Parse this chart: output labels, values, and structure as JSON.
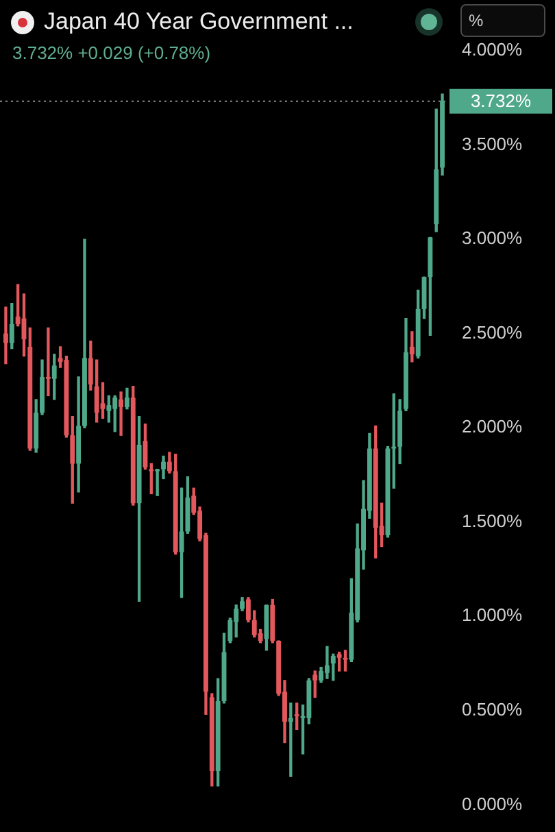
{
  "chart_data": {
    "type": "candlestick",
    "title": "Japan 40 Year Government ...",
    "subtitle": "3.732% +0.029 (+0.78%)",
    "annotations": [
      "%"
    ],
    "categories": [
      null,
      null,
      null,
      null,
      null,
      null,
      null,
      null,
      null,
      null,
      null,
      null,
      null,
      null,
      null,
      null,
      null,
      null,
      null,
      null,
      null,
      null,
      null,
      null,
      null,
      null,
      null,
      null,
      null,
      null,
      null,
      null,
      null,
      null,
      null,
      null,
      null,
      null,
      null,
      null,
      null,
      null,
      null,
      null,
      null,
      null,
      null,
      null,
      null,
      null,
      null,
      null,
      null,
      null,
      null,
      null,
      null,
      null,
      null,
      null,
      null,
      null,
      null,
      null,
      null,
      null,
      null,
      null,
      null,
      null,
      null,
      null,
      null
    ],
    "ohlc": [
      [
        2.5,
        2.64,
        2.34,
        2.45
      ],
      [
        2.45,
        2.66,
        2.42,
        2.55
      ],
      [
        2.59,
        2.76,
        2.54,
        2.55
      ],
      [
        2.58,
        2.71,
        2.38,
        2.47
      ],
      [
        2.43,
        2.53,
        1.88,
        1.89
      ],
      [
        1.89,
        2.15,
        1.87,
        2.08
      ],
      [
        2.08,
        2.36,
        2.07,
        2.27
      ],
      [
        2.27,
        2.53,
        2.17,
        2.26
      ],
      [
        2.26,
        2.39,
        2.15,
        2.33
      ],
      [
        2.37,
        2.43,
        2.32,
        2.35
      ],
      [
        2.36,
        2.38,
        1.95,
        1.96
      ],
      [
        1.96,
        2.06,
        1.6,
        1.81
      ],
      [
        1.81,
        2.27,
        1.66,
        2.01
      ],
      [
        2.01,
        3.0,
        2.0,
        2.37
      ],
      [
        2.37,
        2.46,
        2.2,
        2.23
      ],
      [
        2.22,
        2.36,
        2.03,
        2.08
      ],
      [
        2.13,
        2.24,
        2.05,
        2.1
      ],
      [
        2.09,
        2.17,
        2.03,
        2.12
      ],
      [
        2.1,
        2.17,
        1.98,
        2.16
      ],
      [
        2.15,
        2.19,
        1.96,
        2.11
      ],
      [
        2.11,
        2.21,
        2.1,
        2.16
      ],
      [
        2.16,
        2.22,
        1.59,
        1.6
      ],
      [
        1.6,
        2.06,
        1.08,
        1.91
      ],
      [
        1.93,
        2.02,
        1.78,
        1.79
      ],
      [
        1.78,
        1.81,
        1.65,
        1.77
      ],
      [
        1.77,
        1.78,
        1.64,
        1.78
      ],
      [
        1.78,
        1.85,
        1.73,
        1.82
      ],
      [
        1.82,
        1.87,
        1.76,
        1.77
      ],
      [
        1.77,
        1.86,
        1.33,
        1.34
      ],
      [
        1.34,
        1.68,
        1.1,
        1.45
      ],
      [
        1.45,
        1.74,
        1.44,
        1.63
      ],
      [
        1.64,
        1.68,
        1.54,
        1.55
      ],
      [
        1.56,
        1.58,
        1.4,
        1.41
      ],
      [
        1.43,
        1.44,
        0.48,
        0.6
      ],
      [
        0.57,
        0.59,
        0.1,
        0.18
      ],
      [
        0.18,
        0.67,
        0.1,
        0.55
      ],
      [
        0.55,
        0.91,
        0.54,
        0.81
      ],
      [
        0.87,
        0.99,
        0.86,
        0.98
      ],
      [
        0.97,
        1.06,
        0.89,
        1.04
      ],
      [
        1.04,
        1.1,
        1.03,
        1.08
      ],
      [
        1.09,
        1.1,
        0.97,
        0.98
      ],
      [
        0.98,
        1.03,
        0.89,
        0.9
      ],
      [
        0.91,
        0.93,
        0.86,
        0.87
      ],
      [
        0.88,
        1.06,
        0.82,
        1.06
      ],
      [
        1.06,
        1.09,
        0.86,
        0.87
      ],
      [
        0.87,
        0.87,
        0.58,
        0.59
      ],
      [
        0.6,
        0.66,
        0.33,
        0.44
      ],
      [
        0.44,
        0.54,
        0.15,
        0.46
      ],
      [
        0.48,
        0.54,
        0.4,
        0.47
      ],
      [
        0.46,
        0.53,
        0.27,
        0.47
      ],
      [
        0.46,
        0.67,
        0.43,
        0.66
      ],
      [
        0.69,
        0.71,
        0.57,
        0.66
      ],
      [
        0.66,
        0.73,
        0.65,
        0.71
      ],
      [
        0.7,
        0.84,
        0.67,
        0.74
      ],
      [
        0.75,
        0.8,
        0.66,
        0.79
      ],
      [
        0.8,
        0.81,
        0.71,
        0.78
      ],
      [
        0.78,
        0.82,
        0.71,
        0.77
      ],
      [
        0.77,
        1.2,
        0.76,
        1.02
      ],
      [
        0.98,
        1.49,
        0.97,
        1.36
      ],
      [
        1.35,
        1.72,
        1.25,
        1.57
      ],
      [
        1.56,
        1.97,
        1.52,
        1.89
      ],
      [
        1.89,
        2.01,
        1.31,
        1.47
      ],
      [
        1.48,
        1.6,
        1.37,
        1.43
      ],
      [
        1.43,
        1.9,
        1.42,
        1.89
      ],
      [
        1.89,
        2.18,
        1.68,
        1.9
      ],
      [
        1.9,
        2.15,
        1.81,
        2.09
      ],
      [
        2.1,
        2.58,
        2.09,
        2.4
      ],
      [
        2.43,
        2.51,
        2.35,
        2.39
      ],
      [
        2.38,
        2.73,
        2.37,
        2.63
      ],
      [
        2.63,
        2.8,
        2.58,
        2.8
      ],
      [
        2.8,
        3.01,
        2.49,
        3.01
      ],
      [
        3.08,
        3.69,
        3.04,
        3.37
      ],
      [
        3.38,
        3.77,
        3.34,
        3.732
      ]
    ],
    "colors": [
      "#e2585d",
      "#4fa88a",
      "#e2585d",
      "#e2585d",
      "#e2585d",
      "#4fa88a",
      "#4fa88a",
      "#e2585d",
      "#4fa88a",
      "#e2585d",
      "#e2585d",
      "#e2585d",
      "#4fa88a",
      "#4fa88a",
      "#e2585d",
      "#e2585d",
      "#e2585d",
      "#4fa88a",
      "#4fa88a",
      "#e2585d",
      "#4fa88a",
      "#e2585d",
      "#4fa88a",
      "#e2585d",
      "#e2585d",
      "#4fa88a",
      "#4fa88a",
      "#e2585d",
      "#e2585d",
      "#4fa88a",
      "#4fa88a",
      "#e2585d",
      "#e2585d",
      "#e2585d",
      "#e2585d",
      "#4fa88a",
      "#4fa88a",
      "#4fa88a",
      "#4fa88a",
      "#4fa88a",
      "#e2585d",
      "#e2585d",
      "#e2585d",
      "#4fa88a",
      "#e2585d",
      "#e2585d",
      "#e2585d",
      "#4fa88a",
      "#e2585d",
      "#4fa88a",
      "#4fa88a",
      "#e2585d",
      "#4fa88a",
      "#4fa88a",
      "#4fa88a",
      "#e2585d",
      "#e2585d",
      "#4fa88a",
      "#4fa88a",
      "#4fa88a",
      "#4fa88a",
      "#e2585d",
      "#e2585d",
      "#4fa88a",
      "#4fa88a",
      "#4fa88a",
      "#4fa88a",
      "#e2585d",
      "#4fa88a",
      "#4fa88a",
      "#4fa88a",
      "#4fa88a",
      "#4fa88a"
    ],
    "ylim": [
      0,
      4
    ],
    "yticks": [
      {
        "value": 0,
        "label": "0.000%"
      },
      {
        "value": 0.5,
        "label": "0.500%"
      },
      {
        "value": 1,
        "label": "1.000%"
      },
      {
        "value": 1.5,
        "label": "1.500%"
      },
      {
        "value": 2,
        "label": "2.000%"
      },
      {
        "value": 2.5,
        "label": "2.500%"
      },
      {
        "value": 3,
        "label": "3.000%"
      },
      {
        "value": 3.5,
        "label": "3.500%"
      },
      {
        "value": 4,
        "label": "4.000%"
      }
    ],
    "ref_lines": [
      {
        "axis": "y",
        "value": 3.732,
        "label": "3.732%",
        "color": "#8c8c8c",
        "line_style": "dotted"
      }
    ],
    "tick_labels": "y"
  }
}
